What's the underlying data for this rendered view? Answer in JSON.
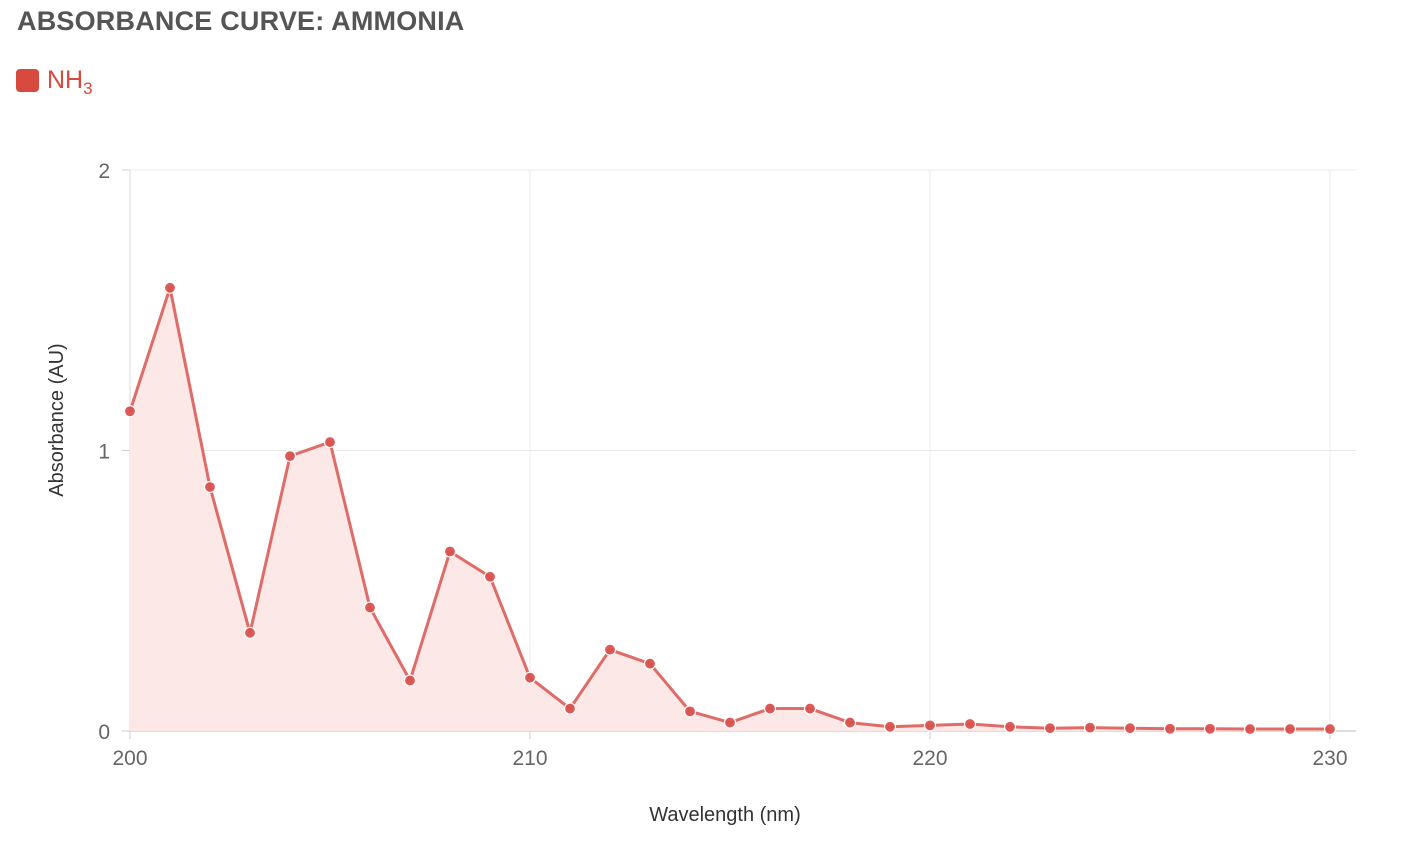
{
  "title": "ABSORBANCE CURVE: AMMONIA",
  "legend": {
    "label": "NH",
    "subscript": "3",
    "color": "#d94a3e"
  },
  "chart_data": {
    "type": "area",
    "xlabel": "Wavelength (nm)",
    "ylabel": "Absorbance (AU)",
    "xlim": [
      200,
      230
    ],
    "ylim": [
      0,
      2
    ],
    "x_ticks": [
      200,
      210,
      220,
      230
    ],
    "y_ticks": [
      0,
      1,
      2
    ],
    "grid": true,
    "legend_position": "top-left",
    "series": [
      {
        "name": "NH3",
        "color": "#d9534f",
        "fill": "#fbe8e7",
        "x": [
          200,
          201,
          202,
          203,
          204,
          205,
          206,
          207,
          208,
          209,
          210,
          211,
          212,
          213,
          214,
          215,
          216,
          217,
          218,
          219,
          220,
          221,
          222,
          223,
          224,
          225,
          226,
          227,
          228,
          229,
          230
        ],
        "y": [
          1.14,
          1.58,
          0.87,
          0.35,
          0.98,
          1.03,
          0.44,
          0.18,
          0.64,
          0.55,
          0.19,
          0.08,
          0.29,
          0.24,
          0.07,
          0.03,
          0.08,
          0.08,
          0.03,
          0.015,
          0.02,
          0.025,
          0.015,
          0.01,
          0.012,
          0.01,
          0.008,
          0.008,
          0.007,
          0.007,
          0.007
        ]
      }
    ]
  }
}
